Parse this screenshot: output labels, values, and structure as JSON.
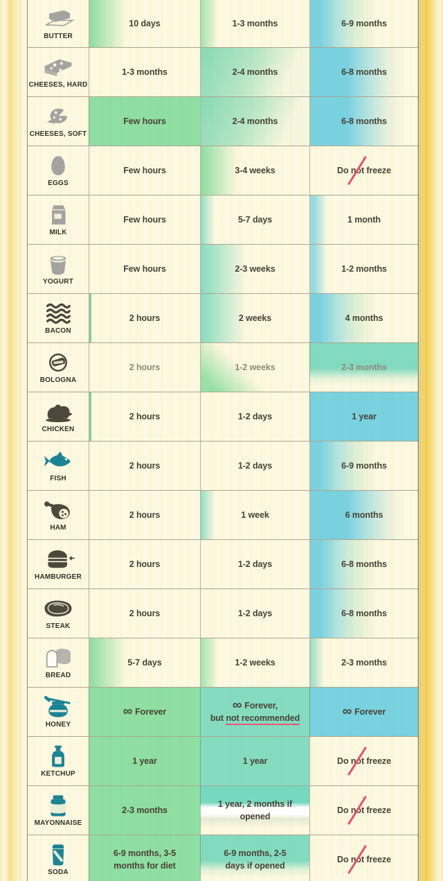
{
  "title": "food storage duration table",
  "palette": {
    "green": "#86DB9C",
    "teal": "#78D8BC",
    "blue": "#6ECEDF",
    "cream": "#FBF7DC",
    "wood_yellow": "#F2CC4F",
    "slash_red": "#EC4E6F",
    "underline_red": "#F0527A",
    "icon_gray": "#A3A3A0",
    "icon_dark": "#4D473C",
    "icon_teal": "#1A8495",
    "text": "#474337",
    "label": "#34312A"
  },
  "rows": [
    {
      "label": "BUTTER",
      "icon": "butter",
      "icon_color": "gray",
      "cells": [
        {
          "text": "10 days",
          "tint": "green-fade"
        },
        {
          "text": "1-3 months",
          "tint": "green-faint"
        },
        {
          "text": "6-9 months",
          "tint": "blue-fade"
        }
      ]
    },
    {
      "label": "CHEESES, HARD",
      "icon": "cheese-hard",
      "icon_color": "gray",
      "cells": [
        {
          "text": "1-3 months",
          "tint": "none"
        },
        {
          "text": "2-4 months",
          "tint": "teal-tl"
        },
        {
          "text": "6-8 months",
          "tint": "blue-wide"
        }
      ]
    },
    {
      "label": "CHEESES, SOFT",
      "icon": "cheese-soft",
      "icon_color": "gray",
      "cells": [
        {
          "text": "Few hours",
          "tint": "green"
        },
        {
          "text": "2-4 months",
          "tint": "teal-tl"
        },
        {
          "text": "6-8 months",
          "tint": "blue-wide"
        }
      ]
    },
    {
      "label": "EGGS",
      "icon": "egg",
      "icon_color": "gray",
      "cells": [
        {
          "text": "Few hours",
          "tint": "none"
        },
        {
          "text": "3-4 weeks",
          "tint": "green-fade"
        },
        {
          "text": "Do not freeze",
          "tint": "none",
          "no_freeze": true
        }
      ]
    },
    {
      "label": "MILK",
      "icon": "milk",
      "icon_color": "gray",
      "cells": [
        {
          "text": "Few hours",
          "tint": "none"
        },
        {
          "text": "5-7 days",
          "tint": "teal-faint"
        },
        {
          "text": "1 month",
          "tint": "blue-faint"
        }
      ]
    },
    {
      "label": "YOGURT",
      "icon": "yogurt",
      "icon_color": "gray",
      "cells": [
        {
          "text": "Few hours",
          "tint": "none"
        },
        {
          "text": "2-3 weeks",
          "tint": "teal-fade"
        },
        {
          "text": "1-2 months",
          "tint": "blue-faint"
        }
      ]
    },
    {
      "label": "BACON",
      "icon": "bacon",
      "icon_color": "dark",
      "cells": [
        {
          "text": "2 hours",
          "tint": "green-edge"
        },
        {
          "text": "2 weeks",
          "tint": "teal-fade"
        },
        {
          "text": "4 months",
          "tint": "blue-fade"
        }
      ]
    },
    {
      "label": "BOLOGNA",
      "icon": "bologna",
      "icon_color": "dark",
      "cells": [
        {
          "text": "2 hours",
          "tint": "none",
          "muted": true
        },
        {
          "text": "1-2 weeks",
          "tint": "green-corner",
          "muted": true
        },
        {
          "text": "2-3 months",
          "tint": "teal-top",
          "muted": true
        }
      ]
    },
    {
      "label": "CHICKEN",
      "icon": "chicken",
      "icon_color": "dark",
      "cells": [
        {
          "text": "2 hours",
          "tint": "green-edge"
        },
        {
          "text": "1-2 days",
          "tint": "none"
        },
        {
          "text": "1 year",
          "tint": "blue"
        }
      ]
    },
    {
      "label": "FISH",
      "icon": "fish",
      "icon_color": "teal",
      "cells": [
        {
          "text": "2 hours",
          "tint": "none"
        },
        {
          "text": "1-2 days",
          "tint": "none"
        },
        {
          "text": "6-9 months",
          "tint": "blue-fade"
        }
      ]
    },
    {
      "label": "HAM",
      "icon": "ham",
      "icon_color": "dark",
      "cells": [
        {
          "text": "2 hours",
          "tint": "none"
        },
        {
          "text": "1 week",
          "tint": "teal-faint"
        },
        {
          "text": "6 months",
          "tint": "blue-wide"
        }
      ]
    },
    {
      "label": "HAMBURGER",
      "icon": "hamburger",
      "icon_color": "dark",
      "cells": [
        {
          "text": "2 hours",
          "tint": "none"
        },
        {
          "text": "1-2 days",
          "tint": "none"
        },
        {
          "text": "6-8 months",
          "tint": "blue-fade"
        }
      ]
    },
    {
      "label": "STEAK",
      "icon": "steak",
      "icon_color": "dark",
      "cells": [
        {
          "text": "2 hours",
          "tint": "none"
        },
        {
          "text": "1-2 days",
          "tint": "none"
        },
        {
          "text": "6-8 months",
          "tint": "blue-fade"
        }
      ]
    },
    {
      "label": "BREAD",
      "icon": "bread",
      "icon_color": "gray",
      "cells": [
        {
          "text": "5-7 days",
          "tint": "green-fade"
        },
        {
          "text": "1-2 weeks",
          "tint": "green-faint"
        },
        {
          "text": "2-3 months",
          "tint": "teal-faint"
        }
      ]
    },
    {
      "label": "HONEY",
      "icon": "honey",
      "icon_color": "teal",
      "cells": [
        {
          "text": "∞ Forever",
          "tint": "green"
        },
        {
          "text": "∞ Forever,",
          "text2_pre": "but ",
          "text2_ul": "not recommended",
          "tint": "teal"
        },
        {
          "text": "∞ Forever",
          "tint": "blue"
        }
      ]
    },
    {
      "label": "KETCHUP",
      "icon": "ketchup",
      "icon_color": "teal",
      "cells": [
        {
          "text": "1 year",
          "tint": "green"
        },
        {
          "text": "1 year",
          "tint": "teal"
        },
        {
          "text": "Do not freeze",
          "tint": "none",
          "no_freeze": true
        }
      ]
    },
    {
      "label": "MAYONNAISE",
      "icon": "mayonnaise",
      "icon_color": "teal",
      "cells": [
        {
          "text": "2-3 months",
          "tint": "green"
        },
        {
          "text": "1 year, 2 months if opened",
          "tint": "teal-band"
        },
        {
          "text": "Do not freeze",
          "tint": "none",
          "no_freeze": true
        }
      ]
    },
    {
      "label": "SODA",
      "icon": "soda",
      "icon_color": "teal",
      "cells": [
        {
          "text": "6-9 months, 3-5",
          "text2": "months for diet",
          "tint": "green"
        },
        {
          "text": "6-9 months, 2-5",
          "text2": "days if opened",
          "tint": "teal-top"
        },
        {
          "text": "Do not freeze",
          "tint": "none",
          "no_freeze": true
        }
      ]
    }
  ]
}
